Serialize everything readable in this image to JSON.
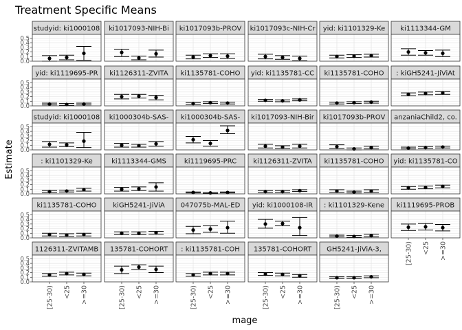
{
  "chart_data": {
    "type": "scatter",
    "title": "Treatment Specific Means",
    "xlabel": "mage",
    "ylabel": "Estimate",
    "categories": [
      "[25-30)",
      "<25",
      ">=30"
    ],
    "y_ticks": [
      "0.0",
      "0.1",
      "0.2",
      "0.3",
      "0.4",
      "0.5"
    ],
    "ylim": [
      0,
      0.58
    ],
    "grid": true,
    "point_color": "#000000",
    "panel_border_color": "#333333",
    "strip_fill": "#d9d9d9",
    "panels": [
      {
        "strip": "studyid: ki1000108",
        "points": [
          [
            0.06,
            0.0,
            0.12
          ],
          [
            0.08,
            0.03,
            0.13
          ],
          [
            0.17,
            0.02,
            0.32
          ]
        ]
      },
      {
        "strip": "ki1017093-NIH-Bi",
        "points": [
          [
            0.19,
            0.1,
            0.26
          ],
          [
            0.07,
            0.03,
            0.11
          ],
          [
            0.16,
            0.09,
            0.24
          ]
        ]
      },
      {
        "strip": "ki1017093b-PROV",
        "points": [
          [
            0.09,
            0.05,
            0.13
          ],
          [
            0.12,
            0.08,
            0.16
          ],
          [
            0.11,
            0.06,
            0.16
          ]
        ]
      },
      {
        "strip": "ki1017093c-NIH-Cr",
        "points": [
          [
            0.1,
            0.05,
            0.15
          ],
          [
            0.08,
            0.04,
            0.12
          ],
          [
            0.06,
            0.01,
            0.11
          ]
        ]
      },
      {
        "strip": "yid: ki1101329-Ke",
        "points": [
          [
            0.1,
            0.07,
            0.13
          ],
          [
            0.11,
            0.08,
            0.14
          ],
          [
            0.12,
            0.09,
            0.15
          ]
        ]
      },
      {
        "strip": "ki1113344-GM",
        "points": [
          [
            0.2,
            0.13,
            0.27
          ],
          [
            0.18,
            0.13,
            0.23
          ],
          [
            0.17,
            0.1,
            0.24
          ]
        ]
      },
      {
        "strip": "yid: ki1119695-PR",
        "points": [
          [
            0.04,
            0.02,
            0.06
          ],
          [
            0.03,
            0.01,
            0.05
          ],
          [
            0.04,
            0.02,
            0.06
          ]
        ]
      },
      {
        "strip": "ki1126311-ZVITA",
        "points": [
          [
            0.2,
            0.15,
            0.25
          ],
          [
            0.21,
            0.17,
            0.25
          ],
          [
            0.18,
            0.13,
            0.23
          ]
        ]
      },
      {
        "strip": "ki1135781-COHO",
        "points": [
          [
            0.05,
            0.03,
            0.07
          ],
          [
            0.07,
            0.05,
            0.09
          ],
          [
            0.06,
            0.04,
            0.08
          ]
        ]
      },
      {
        "strip": "yid: ki1135781-CC",
        "points": [
          [
            0.12,
            0.1,
            0.14
          ],
          [
            0.11,
            0.09,
            0.13
          ],
          [
            0.13,
            0.11,
            0.15
          ]
        ]
      },
      {
        "strip": "ki1135781-COHO",
        "points": [
          [
            0.06,
            0.04,
            0.08
          ],
          [
            0.07,
            0.05,
            0.09
          ],
          [
            0.08,
            0.06,
            0.1
          ]
        ]
      },
      {
        "strip": ": kiGH5241-JiViAt",
        "points": [
          [
            0.25,
            0.22,
            0.28
          ],
          [
            0.27,
            0.24,
            0.3
          ],
          [
            0.28,
            0.25,
            0.31
          ]
        ]
      },
      {
        "strip": "studyid: ki1000108",
        "points": [
          [
            0.12,
            0.06,
            0.18
          ],
          [
            0.11,
            0.07,
            0.15
          ],
          [
            0.19,
            0.05,
            0.38
          ]
        ]
      },
      {
        "strip": "ki1000304b-SAS-",
        "points": [
          [
            0.1,
            0.06,
            0.14
          ],
          [
            0.09,
            0.06,
            0.12
          ],
          [
            0.13,
            0.08,
            0.18
          ]
        ]
      },
      {
        "strip": "ki1000304b-SAS-",
        "points": [
          [
            0.22,
            0.15,
            0.29
          ],
          [
            0.14,
            0.08,
            0.2
          ],
          [
            0.42,
            0.35,
            0.52
          ]
        ]
      },
      {
        "strip": "ki1017093-NIH-Bir",
        "points": [
          [
            0.08,
            0.04,
            0.12
          ],
          [
            0.06,
            0.03,
            0.09
          ],
          [
            0.08,
            0.04,
            0.12
          ]
        ]
      },
      {
        "strip": "ki1017093b-PROV",
        "points": [
          [
            0.07,
            0.03,
            0.11
          ],
          [
            0.02,
            0.0,
            0.04
          ],
          [
            0.05,
            0.02,
            0.08
          ]
        ]
      },
      {
        "strip": "anzaniaChild2, co.",
        "points": [
          [
            0.04,
            0.02,
            0.06
          ],
          [
            0.05,
            0.03,
            0.07
          ],
          [
            0.06,
            0.04,
            0.08
          ]
        ]
      },
      {
        "strip": ": ki1101329-Ke",
        "points": [
          [
            0.05,
            0.03,
            0.07
          ],
          [
            0.06,
            0.04,
            0.08
          ],
          [
            0.09,
            0.06,
            0.12
          ]
        ]
      },
      {
        "strip": "ki1113344-GMS",
        "points": [
          [
            0.1,
            0.06,
            0.14
          ],
          [
            0.11,
            0.07,
            0.15
          ],
          [
            0.15,
            0.06,
            0.24
          ]
        ]
      },
      {
        "strip": "ki1119695-PRC",
        "points": [
          [
            0.03,
            0.02,
            0.04
          ],
          [
            0.02,
            0.01,
            0.03
          ],
          [
            0.03,
            0.02,
            0.04
          ]
        ]
      },
      {
        "strip": "ki1126311-ZVITA",
        "points": [
          [
            0.05,
            0.03,
            0.07
          ],
          [
            0.05,
            0.03,
            0.07
          ],
          [
            0.07,
            0.05,
            0.09
          ]
        ]
      },
      {
        "strip": "ki1135781-COHO",
        "points": [
          [
            0.06,
            0.03,
            0.09
          ],
          [
            0.04,
            0.02,
            0.06
          ],
          [
            0.06,
            0.03,
            0.09
          ]
        ]
      },
      {
        "strip": "yid: ki1135781-CO",
        "points": [
          [
            0.13,
            0.1,
            0.16
          ],
          [
            0.14,
            0.11,
            0.17
          ],
          [
            0.16,
            0.13,
            0.19
          ]
        ]
      },
      {
        "strip": "ki1135781-COHO",
        "points": [
          [
            0.07,
            0.04,
            0.1
          ],
          [
            0.06,
            0.03,
            0.09
          ],
          [
            0.07,
            0.04,
            0.1
          ]
        ]
      },
      {
        "strip": "kiGH5241-JiViA",
        "points": [
          [
            0.1,
            0.07,
            0.13
          ],
          [
            0.1,
            0.07,
            0.13
          ],
          [
            0.11,
            0.08,
            0.14
          ]
        ]
      },
      {
        "strip": "047075b-MAL-ED",
        "points": [
          [
            0.17,
            0.09,
            0.25
          ],
          [
            0.19,
            0.12,
            0.26
          ],
          [
            0.22,
            0.1,
            0.36
          ]
        ]
      },
      {
        "strip": "yid: ki1000108-IR",
        "points": [
          [
            0.3,
            0.21,
            0.4
          ],
          [
            0.31,
            0.26,
            0.36
          ],
          [
            0.22,
            0.05,
            0.44
          ]
        ]
      },
      {
        "strip": ": ki1101329-Kene",
        "points": [
          [
            0.04,
            0.02,
            0.06
          ],
          [
            0.03,
            0.01,
            0.05
          ],
          [
            0.05,
            0.02,
            0.08
          ]
        ]
      },
      {
        "strip": "ki1119695-PROB",
        "points": [
          [
            0.23,
            0.16,
            0.3
          ],
          [
            0.24,
            0.17,
            0.31
          ],
          [
            0.22,
            0.15,
            0.29
          ]
        ]
      },
      {
        "strip": "1126311-ZVITAMB",
        "points": [
          [
            0.15,
            0.12,
            0.18
          ],
          [
            0.18,
            0.15,
            0.21
          ],
          [
            0.16,
            0.13,
            0.19
          ]
        ]
      },
      {
        "strip": "135781-COHORT",
        "points": [
          [
            0.26,
            0.18,
            0.34
          ],
          [
            0.32,
            0.27,
            0.37
          ],
          [
            0.27,
            0.2,
            0.34
          ]
        ]
      },
      {
        "strip": ": ki1135781-COH",
        "points": [
          [
            0.15,
            0.12,
            0.18
          ],
          [
            0.18,
            0.15,
            0.21
          ],
          [
            0.18,
            0.15,
            0.21
          ]
        ]
      },
      {
        "strip": "135781-COHORT",
        "points": [
          [
            0.17,
            0.14,
            0.2
          ],
          [
            0.16,
            0.13,
            0.19
          ],
          [
            0.13,
            0.1,
            0.16
          ]
        ]
      },
      {
        "strip": "GH5241-JiViA-3,",
        "points": [
          [
            0.09,
            0.07,
            0.11
          ],
          [
            0.09,
            0.07,
            0.11
          ],
          [
            0.11,
            0.09,
            0.13
          ]
        ]
      }
    ]
  }
}
